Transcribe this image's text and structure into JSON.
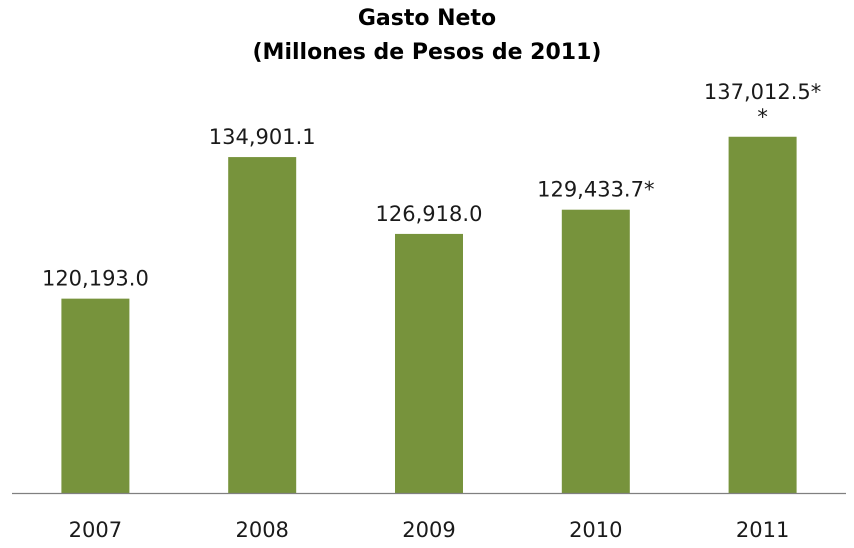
{
  "chart_data": {
    "type": "bar",
    "title": "Gasto Neto",
    "subtitle": "(Millones de Pesos de 2011)",
    "categories": [
      "2007",
      "2008",
      "2009",
      "2010",
      "2011"
    ],
    "values": [
      120193.0,
      134901.1,
      126918.0,
      129433.7,
      137012.5
    ],
    "data_labels": [
      "120,193.0",
      "134,901.1",
      "126,918.0",
      "129,433.7*",
      "137,012.5*\n*"
    ],
    "xlabel": "",
    "ylabel": "",
    "ylim": [
      100000,
      140000
    ],
    "grid": false,
    "legend": "none",
    "bar_color": "#77933c",
    "axis_color": "#808080"
  }
}
